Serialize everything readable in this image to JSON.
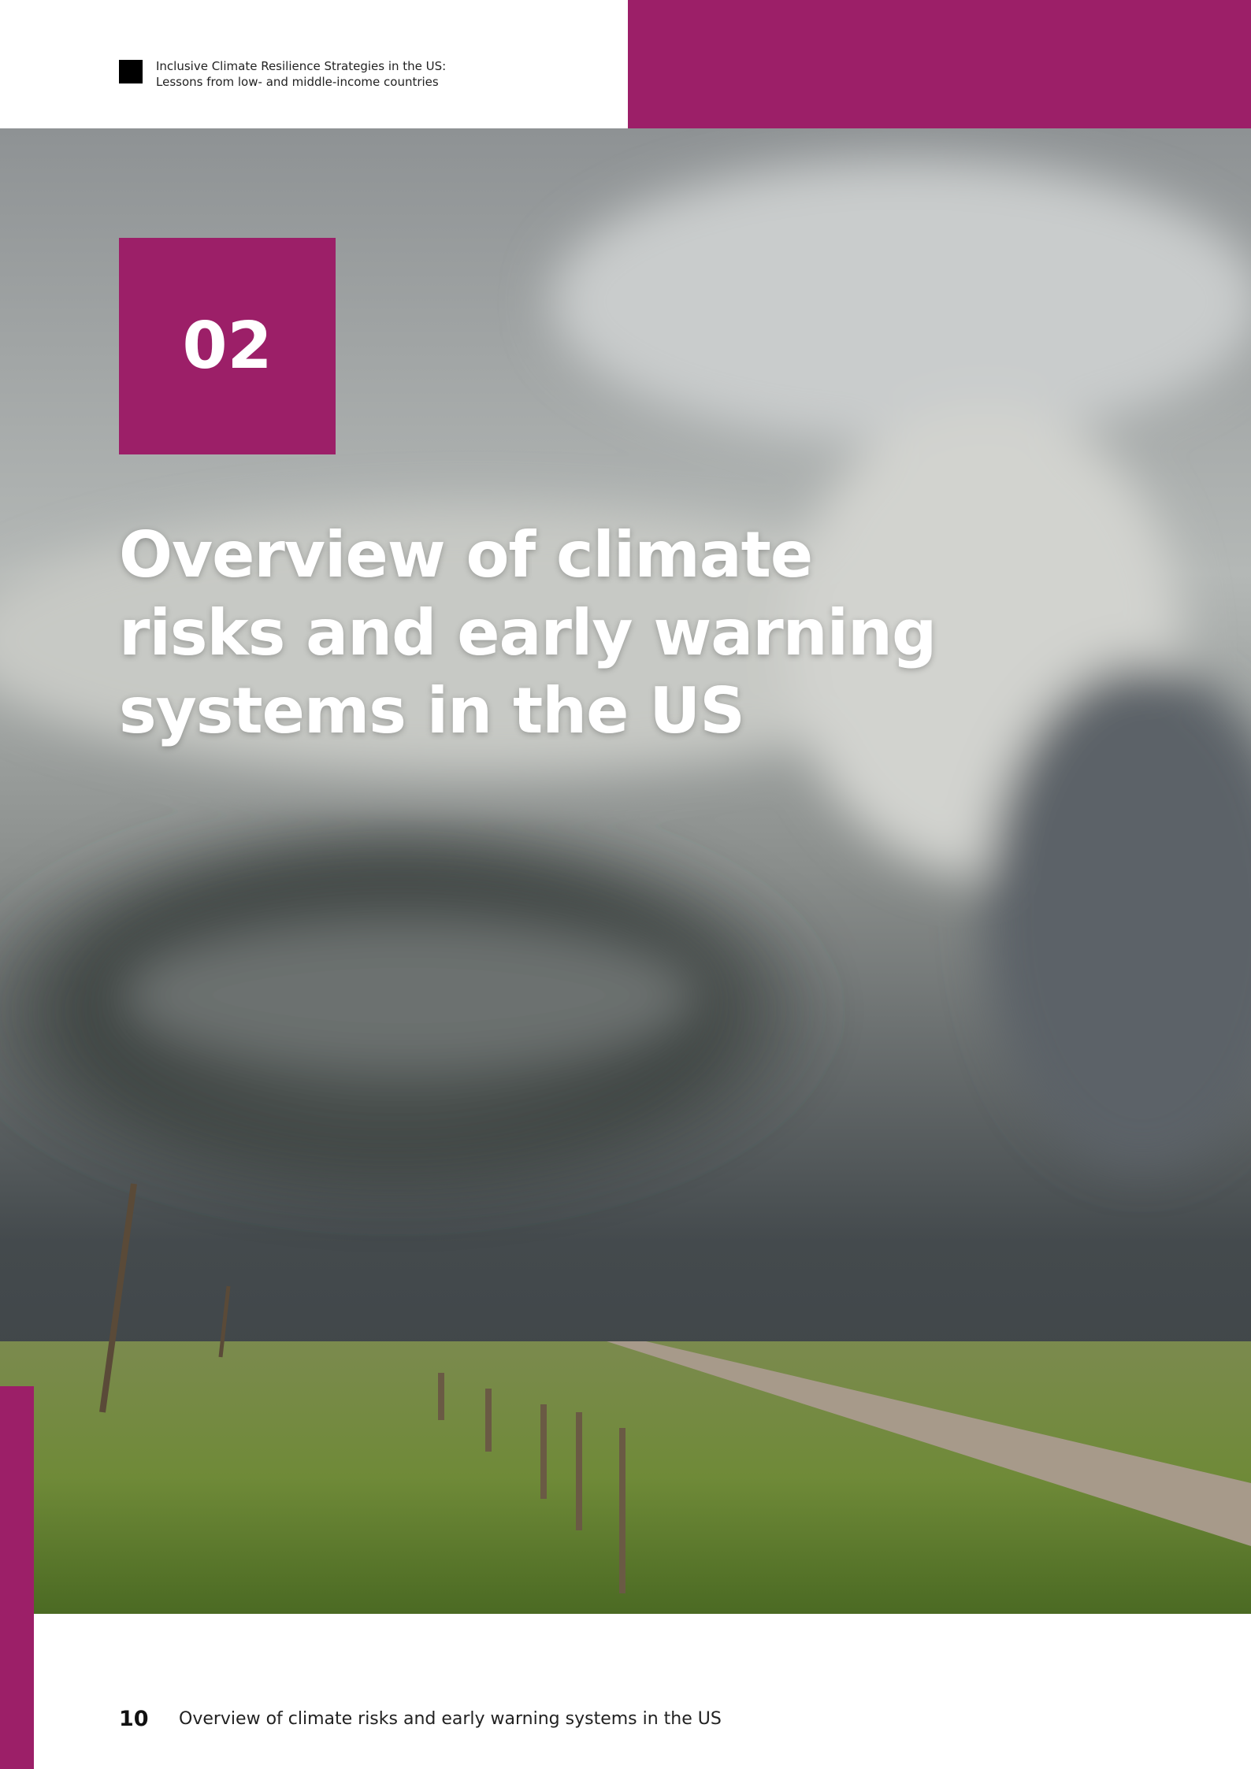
{
  "header": {
    "title_lines": [
      "Inclusive Climate Resilience Strategies in the US:",
      "Lessons from low- and middle-income countries"
    ]
  },
  "section": {
    "number": "02",
    "title_lines": [
      "Overview of climate",
      "risks and early warning",
      "systems in the US"
    ]
  },
  "footer": {
    "page_number": "10",
    "text": "Overview of climate risks and early warning systems in the US"
  }
}
